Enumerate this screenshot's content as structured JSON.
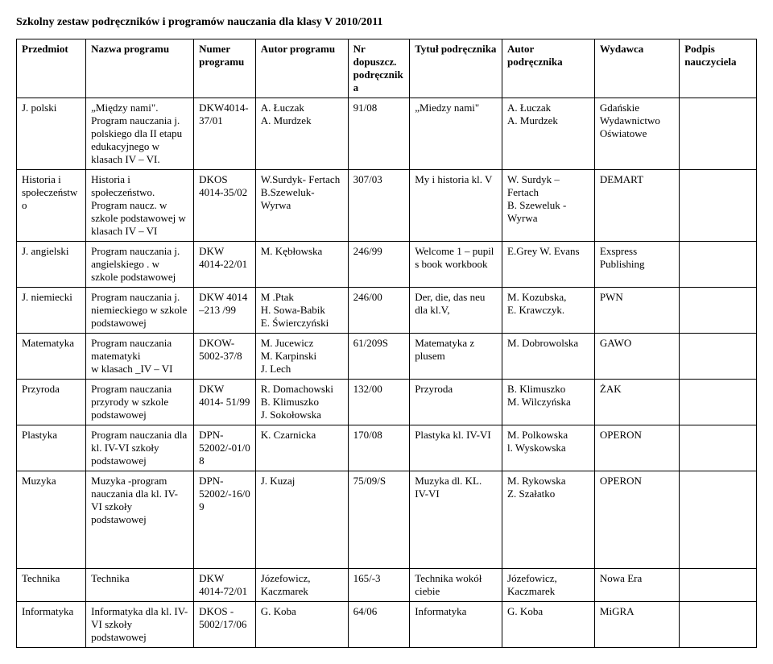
{
  "title": "Szkolny zestaw podręczników i programów nauczania dla klasy V 2010/2011",
  "headers": {
    "przedmiot": "Przedmiot",
    "nazwa": "Nazwa programu",
    "numer": "Numer programu",
    "autor_prog": "Autor programu",
    "nrdop": "Nr dopuszcz. podręcznika",
    "tytul": "Tytuł podręcznika",
    "autor_pod": "Autor podręcznika",
    "wydawca": "Wydawca",
    "podpis": "Podpis nauczyciela"
  },
  "rows": [
    {
      "przedmiot": "J. polski",
      "nazwa": "„Między nami\". Program nauczania j. polskiego dla II etapu edukacyjnego w klasach IV – VI.",
      "numer": "DKW4014-37/01",
      "autor_prog": "A. Łuczak\nA. Murdzek",
      "nrdop": "91/08",
      "tytul": "„Miedzy nami\"",
      "autor_pod": "A. Łuczak\nA. Murdzek",
      "wydawca": "Gdańskie Wydawnictwo Oświatowe",
      "podpis": ""
    },
    {
      "przedmiot": "Historia i społeczeństwo",
      "nazwa": "Historia i społeczeństwo. Program   naucz. w szkole podstawowej w klasach IV – VI",
      "numer": "DKOS 4014-35/02",
      "autor_prog": "W.Surdyk- Fertach\nB.Szeweluk-Wyrwa",
      "nrdop": "307/03",
      "tytul": "My i historia  kl. V",
      "autor_pod": "W. Surdyk – Fertach\nB. Szeweluk - Wyrwa",
      "wydawca": "DEMART",
      "podpis": ""
    },
    {
      "przedmiot": "J. angielski",
      "nazwa": "Program nauczania j. angielskiego . w szkole podstawowej",
      "numer": "DKW 4014-22/01",
      "autor_prog": "M. Kębłowska",
      "nrdop": "246/99",
      "tytul": "Welcome 1 – pupil s book workbook",
      "autor_pod": "E.Grey W. Evans",
      "wydawca": "Exspress Publishing",
      "podpis": ""
    },
    {
      "przedmiot": "J. niemiecki",
      "nazwa": "Program nauczania j. niemieckiego w szkole podstawowej",
      "numer": "DKW 4014 –213 /99",
      "autor_prog": "M .Ptak\nH. Sowa-Babik\nE. Świerczyński",
      "nrdop": "246/00",
      "tytul": "Der, die,  das neu dla kl.V,",
      "autor_pod": "M. Kozubska,\nE. Krawczyk.",
      "wydawca": "PWN",
      "podpis": ""
    },
    {
      "przedmiot": "Matematyka",
      "nazwa": "Program nauczania matematyki\nw klasach _IV – VI",
      "numer": "DKOW-5002-37/8",
      "autor_prog": "M. Jucewicz\nM. Karpinski\nJ. Lech",
      "nrdop": "61/209S",
      "tytul": "Matematyka z plusem",
      "autor_pod": "M. Dobrowolska",
      "wydawca": "GAWO",
      "podpis": ""
    },
    {
      "przedmiot": "Przyroda",
      "nazwa": "Program nauczania przyrody w szkole podstawowej",
      "numer": "DKW 4014- 51/99",
      "autor_prog": "R. Domachowski\nB. Klimuszko\nJ. Sokołowska",
      "nrdop": "132/00",
      "tytul": "Przyroda",
      "autor_pod": "B. Klimuszko\nM. Wilczyńska",
      "wydawca": "ŻAK",
      "podpis": ""
    },
    {
      "przedmiot": "Plastyka",
      "nazwa": "Program nauczania dla kl. IV-VI szkoły podstawowej",
      "numer": "DPN-52002/-01/08",
      "autor_prog": "K. Czarnicka",
      "nrdop": "170/08",
      "tytul": "Plastyka kl. IV-VI",
      "autor_pod": "M. Polkowska\nl. Wyskowska",
      "wydawca": "OPERON",
      "podpis": ""
    },
    {
      "przedmiot": "Muzyka",
      "nazwa": "Muzyka -program nauczania dla kl. IV-VI szkoły podstawowej",
      "numer": "DPN-52002/-16/09",
      "autor_prog": "J. Kuzaj",
      "nrdop": "75/09/S",
      "tytul": "Muzyka dl. KL. IV-VI",
      "autor_pod": "M. Rykowska\nZ. Szałatko",
      "wydawca": "OPERON",
      "podpis": ""
    }
  ],
  "rows2": [
    {
      "przedmiot": "Technika",
      "nazwa": "Technika",
      "numer": "DKW 4014-72/01",
      "autor_prog": "Józefowicz, Kaczmarek",
      "nrdop": "165/-3",
      "tytul": "Technika wokół ciebie",
      "autor_pod": "Józefowicz, Kaczmarek",
      "wydawca": "Nowa Era",
      "podpis": ""
    },
    {
      "przedmiot": "Informatyka",
      "nazwa": "Informatyka dla kl. IV- VI szkoły podstawowej",
      "numer": "DKOS - 5002/17/06",
      "autor_prog": "G. Koba",
      "nrdop": "64/06",
      "tytul": "Informatyka",
      "autor_pod": "G. Koba",
      "wydawca": "MiGRA",
      "podpis": ""
    }
  ]
}
